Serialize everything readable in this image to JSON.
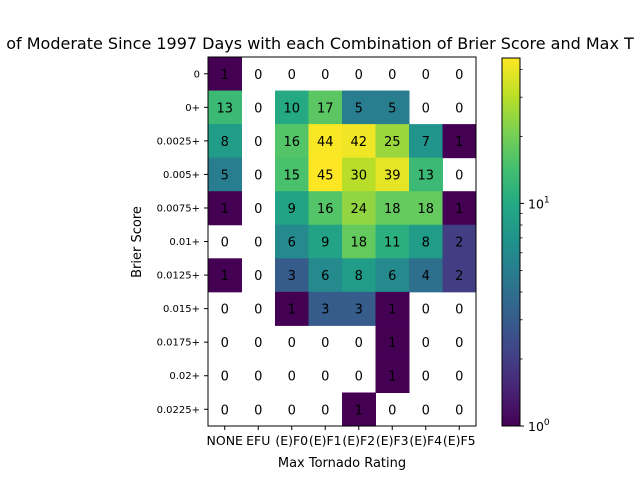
{
  "chart_data": {
    "type": "heatmap",
    "title": "of Moderate Since 1997 Days with each Combination of Brier Score and Max T",
    "xlabel": "Max Tornado Rating",
    "ylabel": "Brier Score",
    "x_categories": [
      "NONE",
      "EFU",
      "(E)F0",
      "(E)F1",
      "(E)F2",
      "(E)F3",
      "(E)F4",
      "(E)F5"
    ],
    "y_categories": [
      "0",
      "0+",
      "0.0025+",
      "0.005+",
      "0.0075+",
      "0.01+",
      "0.0125+",
      "0.015+",
      "0.0175+",
      "0.02+",
      "0.0225+"
    ],
    "values": [
      [
        1,
        0,
        0,
        0,
        0,
        0,
        0,
        0
      ],
      [
        13,
        0,
        10,
        17,
        5,
        5,
        0,
        0
      ],
      [
        8,
        0,
        16,
        44,
        42,
        25,
        7,
        1
      ],
      [
        5,
        0,
        15,
        45,
        30,
        39,
        13,
        0
      ],
      [
        1,
        0,
        9,
        16,
        24,
        18,
        18,
        1
      ],
      [
        0,
        0,
        6,
        9,
        18,
        11,
        8,
        2
      ],
      [
        1,
        0,
        3,
        6,
        8,
        6,
        4,
        2
      ],
      [
        0,
        0,
        1,
        3,
        3,
        1,
        0,
        0
      ],
      [
        0,
        0,
        0,
        0,
        0,
        1,
        0,
        0
      ],
      [
        0,
        0,
        0,
        0,
        0,
        1,
        0,
        0
      ],
      [
        0,
        0,
        0,
        0,
        1,
        0,
        0,
        0
      ]
    ],
    "colorbar": {
      "scale": "log",
      "colormap": "viridis",
      "range": [
        1,
        45
      ],
      "ticks": [
        {
          "base": "10",
          "exp": "0"
        },
        {
          "base": "10",
          "exp": "1"
        }
      ]
    },
    "zero_cells_color": "#ffffff",
    "grid": false
  }
}
